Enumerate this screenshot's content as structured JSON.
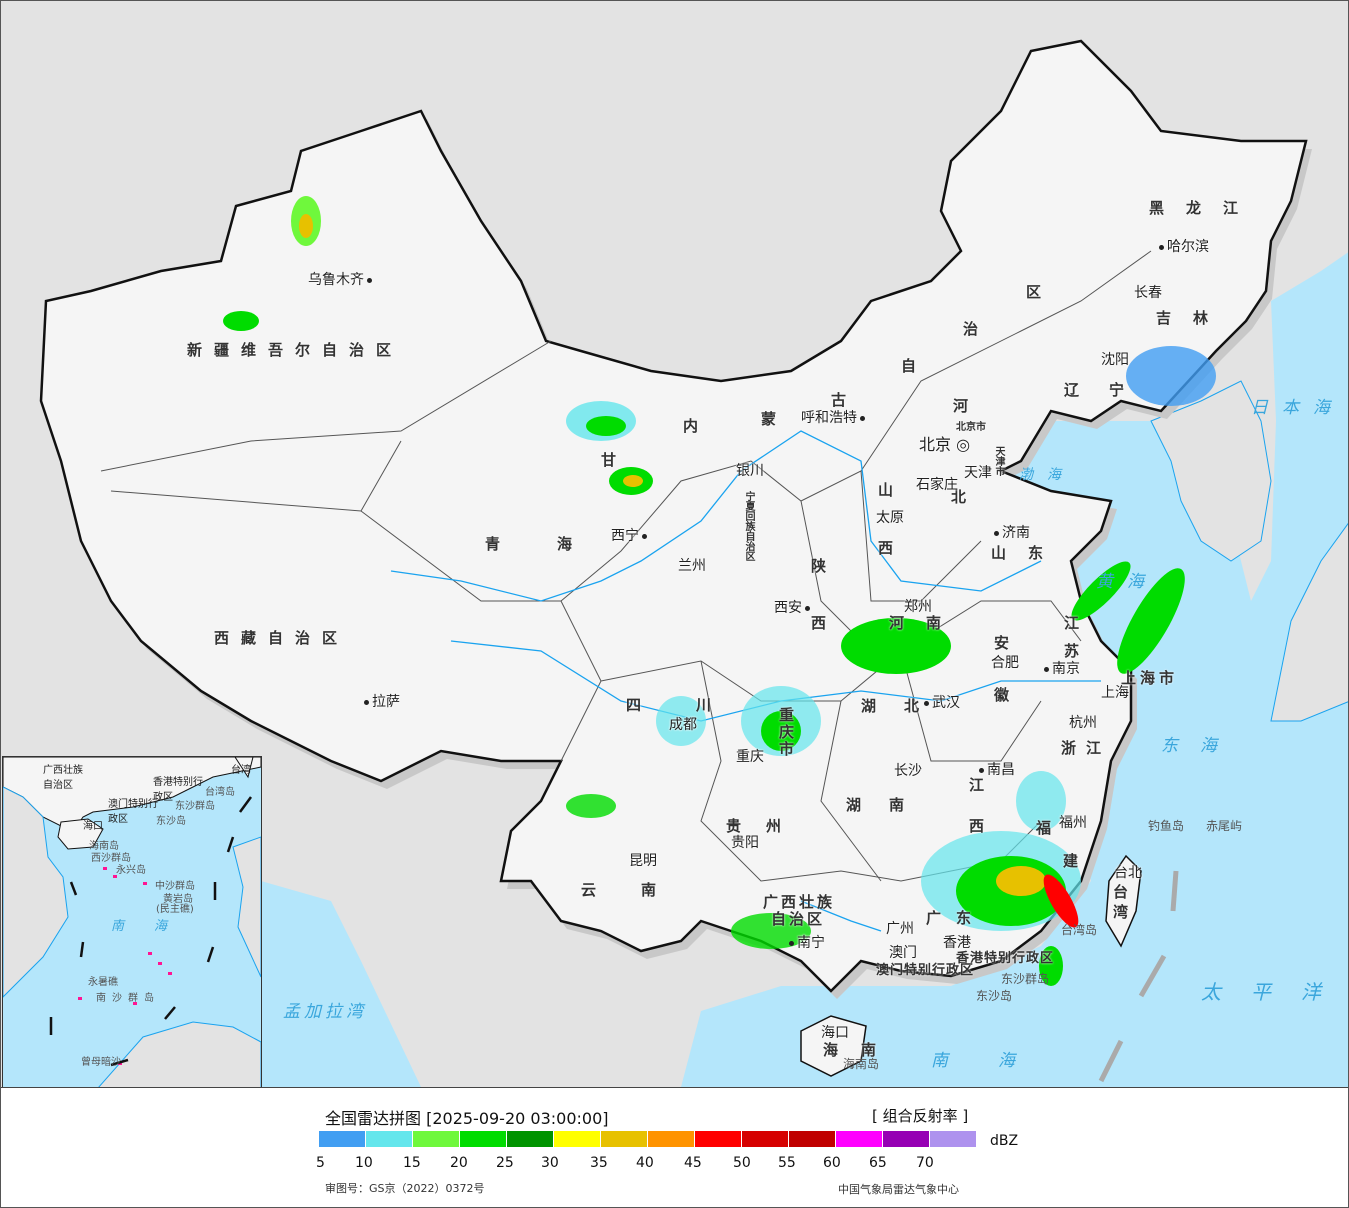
{
  "legend": {
    "title": "全国雷达拼图 [2025-09-20 03:00:00]",
    "product": "[ 组合反射率 ]",
    "unit": "dBZ",
    "ticks": [
      "5",
      "10",
      "15",
      "20",
      "25",
      "30",
      "35",
      "40",
      "45",
      "50",
      "55",
      "60",
      "65",
      "70"
    ],
    "colors": [
      "#419ef2",
      "#64e6ec",
      "#6ff83c",
      "#00dc00",
      "#009300",
      "#ffff00",
      "#e7c100",
      "#ff9300",
      "#ff0000",
      "#d60000",
      "#c00000",
      "#ff00ff",
      "#9600b4",
      "#ae92ee"
    ],
    "approval": "审图号：GS京（2022）0372号",
    "credit": "中国气象局雷达气象中心"
  },
  "map": {
    "provinces": [
      "新疆维吾尔自治区",
      "西藏自治区",
      "青",
      "海",
      "甘",
      "内",
      "蒙",
      "古",
      "自",
      "治",
      "区",
      "黑龙江",
      "吉林",
      "辽",
      "宁",
      "河",
      "北",
      "山",
      "西",
      "山东",
      "河",
      "南",
      "陕",
      "西",
      "四",
      "川",
      "重庆市",
      "湖",
      "北",
      "湖",
      "南",
      "安",
      "徽",
      "江",
      "苏",
      "上海市",
      "浙江",
      "江",
      "西",
      "福",
      "建",
      "贵",
      "州",
      "云",
      "南",
      "广西壮族",
      "自治区",
      "广",
      "东",
      "海",
      "南",
      "台",
      "湾",
      "香港特别行政区",
      "澳门特别行政区",
      "宁夏回族自治区",
      "天津市",
      "北京市"
    ],
    "cities": [
      "乌鲁木齐",
      "拉萨",
      "西宁",
      "兰州",
      "银川",
      "呼和浩特",
      "北京",
      "天津",
      "石家庄",
      "太原",
      "济南",
      "郑州",
      "西安",
      "合肥",
      "南京",
      "上海",
      "武汉",
      "杭州",
      "成都",
      "重庆",
      "长沙",
      "南昌",
      "福州",
      "贵阳",
      "昆明",
      "南宁",
      "广州",
      "香港",
      "澳门",
      "海口",
      "台北",
      "哈尔滨",
      "长春",
      "沈阳"
    ],
    "seas": [
      "渤海",
      "黄海",
      "东海",
      "日本海",
      "南海",
      "太平洋",
      "孟加拉湾"
    ],
    "islands": [
      "钓鱼岛",
      "赤尾屿",
      "东沙群岛",
      "东沙岛",
      "台湾岛",
      "海南岛"
    ]
  },
  "inset": {
    "labels": [
      "南海",
      "西沙群岛",
      "永兴岛",
      "中沙群岛",
      "黄岩岛",
      "(民主礁)",
      "永暑礁",
      "南沙群岛",
      "曾母暗沙",
      "海口",
      "海南岛",
      "东沙群岛",
      "东沙岛",
      "台湾",
      "广西壮族自治区",
      "香港特别行政区",
      "澳门特别行政区",
      "台湾岛"
    ]
  },
  "colors": {
    "sea": "#b4e6fb",
    "land_neighbor": "#e3e3e3",
    "china_land": "#f4f4f4",
    "river": "#1aa3ef",
    "border": "#111"
  }
}
